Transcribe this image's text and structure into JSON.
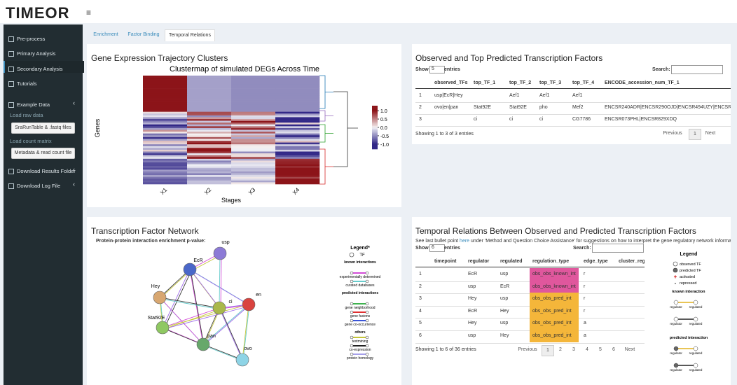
{
  "header": {
    "logo": "TIMEOR",
    "menu_icon": "≡"
  },
  "sidebar": {
    "items": [
      "Pre-process",
      "Primary Analysis",
      "Secondary Analysis",
      "Tutorials",
      "Example Data"
    ],
    "example": {
      "load_raw": "Load raw data",
      "raw_button": "SraRunTable & .fastq files",
      "load_count": "Load count matrix",
      "count_button": "Metadata & read count file"
    },
    "downloads": [
      "Download Results Folder",
      "Download Log File"
    ]
  },
  "tabs": [
    "Enrichment",
    "Factor Binding",
    "Temporal Relations"
  ],
  "clusters": {
    "panel_title": "Gene Expression Trajectory Clusters",
    "chart_title": "Clustermap of simulated DEGs Across Time",
    "y_label": "Genes",
    "x_label": "Stages",
    "stages": [
      "X1",
      "X2",
      "X3",
      "X4"
    ],
    "colorbar_lim": [
      -1.3,
      1.3
    ],
    "colorbar_ticks": [
      {
        "value": 1,
        "label": "1.0"
      },
      {
        "value": 0.5,
        "label": "0.5"
      },
      {
        "value": 0,
        "label": "0.0"
      },
      {
        "value": -0.5,
        "label": "-0.5"
      },
      {
        "value": -1,
        "label": "-1.0"
      }
    ]
  },
  "tf_table": {
    "title": "Observed and Top Predicted Transcription Factors",
    "show": "Show",
    "length": "5",
    "entries": "entries",
    "search": "Search:",
    "columns": [
      "observed_TFs",
      "top_TF_1",
      "top_TF_2",
      "top_TF_3",
      "top_TF_4",
      "ENCODE_accession_num_TF_1"
    ],
    "rows": [
      [
        "1",
        "usp|EcR|Hey",
        null,
        "Aef1",
        "Aef1",
        "Aef1",
        null
      ],
      [
        "2",
        "ovo|en|pan",
        "Stat92E",
        "Stat92E",
        "pho",
        "Mef2",
        "ENCSR240ADR|ENCSR290OJD|ENCSR494UZY|ENCSR894SLI"
      ],
      [
        "3",
        null,
        "ci",
        "ci",
        "ci",
        "CG7786",
        "ENCSR073PHL|ENCSR829XDQ"
      ]
    ],
    "info": "Showing 1 to 3 of 3 entries",
    "pages": [
      "Previous",
      "1",
      "Next"
    ]
  },
  "network": {
    "title": "Transcription Factor Network",
    "subtitle": "Protein-protein interaction enrichment p-value:",
    "nodes": [
      "usp",
      "EcR",
      "Hey",
      "ci",
      "en",
      "Stat92E",
      "pan",
      "ovo"
    ],
    "legend": {
      "title": "Legend*",
      "tf": "TF",
      "known": "known interactions",
      "known_items": [
        "experimentally determined",
        "curated databases"
      ],
      "predicted": "predicted interactions",
      "predicted_items": [
        "gene neighborhood",
        "gene fusions",
        "gene co-occurrence"
      ],
      "others": "others",
      "others_items": [
        "textmining",
        "co-expression",
        "protein homology"
      ]
    }
  },
  "relations": {
    "title": "Temporal Relations Between Observed and Predicted Transcription Factors",
    "note_pre": "See last bullet point ",
    "note_link": "here",
    "note_post": " under 'Method and Question Choice Assistance' for suggestions on how to interpret the gene regulatory network information.",
    "show": "Show",
    "length": "6",
    "entries": "entries",
    "search": "Search:",
    "columns": [
      "timepoint",
      "regulator",
      "regulated",
      "regulation_type",
      "edge_type",
      "cluster_regu"
    ],
    "rows": [
      [
        "1",
        "1",
        "EcR",
        "usp",
        "obs_obs_known_int",
        "r"
      ],
      [
        "2",
        "1",
        "usp",
        "EcR",
        "obs_obs_known_int",
        "r"
      ],
      [
        "3",
        "1",
        "Hey",
        "usp",
        "obs_obs_pred_int",
        "r"
      ],
      [
        "4",
        "1",
        "EcR",
        "Hey",
        "obs_obs_pred_int",
        "r"
      ],
      [
        "5",
        "1",
        "Hey",
        "usp",
        "obs_obs_pred_int",
        "a"
      ],
      [
        "6",
        "1",
        "usp",
        "Hey",
        "obs_obs_pred_int",
        "a"
      ]
    ],
    "info": "Showing 1 to 6 of 36 entries",
    "pages": [
      "Previous",
      "1",
      "2",
      "3",
      "4",
      "5",
      "6",
      "Next"
    ],
    "legend": {
      "title": "Legend",
      "items": [
        "observed TF",
        "predicted TF",
        "activated",
        "repressed"
      ],
      "known": "known interaction",
      "predicted": "predicted interaction",
      "regulator": "regulator",
      "regulated": "regulated"
    }
  }
}
